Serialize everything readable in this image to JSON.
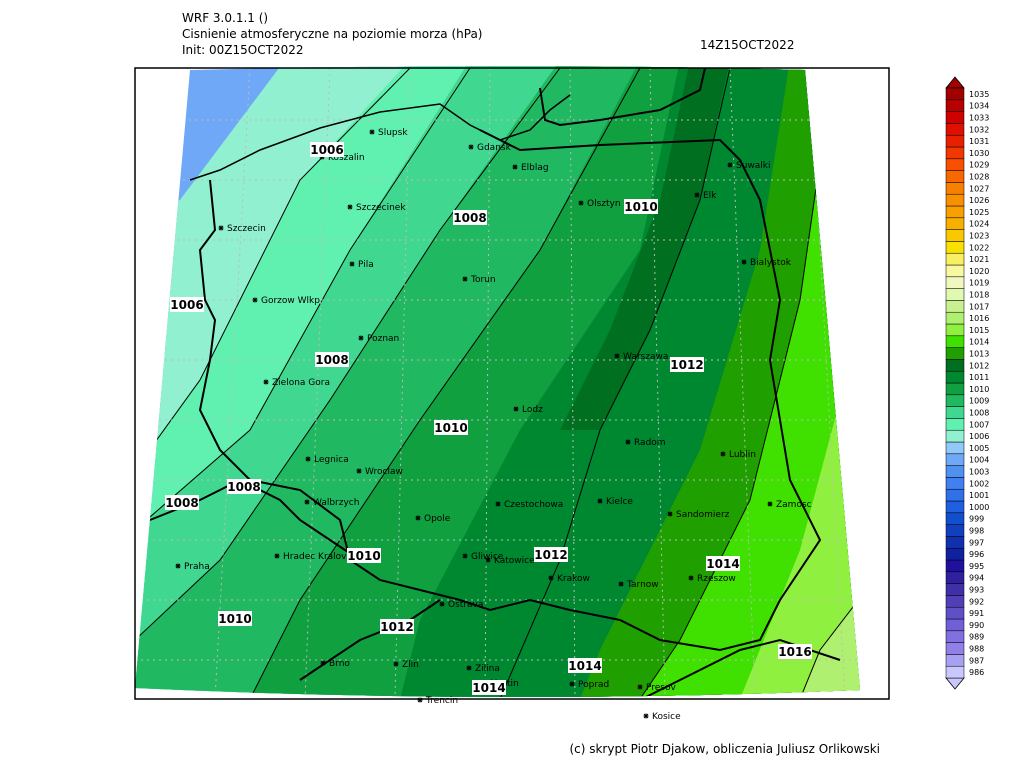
{
  "header": {
    "model": "WRF 3.0.1.1 ()",
    "title": "Cisnienie atmosferyczne na poziomie morza (hPa)",
    "init": "Init: 00Z15OCT2022",
    "valid": "14Z15OCT2022"
  },
  "footer": "(c) skrypt Piotr Djakow, obliczenia Juliusz Orlikowski",
  "cities": [
    "Slupsk",
    "Gdansk",
    "Koszalin",
    "Elblag",
    "Szczecinek",
    "Olsztyn",
    "Elk",
    "Suwalki",
    "Szczecin",
    "Pila",
    "Torun",
    "Bialystok",
    "Gorzow Wlkp",
    "Poznan",
    "Warszawa",
    "Zielona Gora",
    "Lodz",
    "Radom",
    "Lublin",
    "Legnica",
    "Wroclaw",
    "Kielce",
    "Walbrzych",
    "Czestochowa",
    "Zamosc",
    "Opole",
    "Sandomierz",
    "Praha",
    "Hradec Kralove",
    "Gliwice",
    "Katowice",
    "Krakow",
    "Tarnow",
    "Rzeszow",
    "Ostrava",
    "Brno",
    "Zlin",
    "Zilina",
    "Martin",
    "Poprad",
    "Presov",
    "Kosice",
    "Trencin"
  ],
  "isobar_labels": [
    1006,
    1010,
    1008,
    1006,
    1008,
    1012,
    1010,
    1008,
    1008,
    1010,
    1012,
    1014,
    1010,
    1012,
    1014,
    1016,
    1014
  ],
  "colorbar": {
    "levels": [
      986,
      987,
      988,
      989,
      990,
      991,
      992,
      993,
      994,
      995,
      996,
      997,
      998,
      999,
      1000,
      1001,
      1002,
      1003,
      1004,
      1005,
      1006,
      1007,
      1008,
      1009,
      1010,
      1011,
      1012,
      1013,
      1014,
      1015,
      1016,
      1017,
      1018,
      1019,
      1020,
      1021,
      1022,
      1023,
      1024,
      1025,
      1026,
      1027,
      1028,
      1029,
      1030,
      1031,
      1032,
      1033,
      1034,
      1035
    ],
    "colors": [
      "#c8c8ff",
      "#a8a0f0",
      "#9080e8",
      "#8070e0",
      "#7060d8",
      "#6050c8",
      "#5040b8",
      "#4030a8",
      "#3020a0",
      "#2010a0",
      "#1020a0",
      "#1030b0",
      "#1040c0",
      "#1050d0",
      "#2060e0",
      "#3070e8",
      "#4080f0",
      "#5090f0",
      "#70a8f8",
      "#90c8f8",
      "#90f0d0",
      "#60f0b0",
      "#40d890",
      "#20b860",
      "#10a040",
      "#008830",
      "#007020",
      "#20a000",
      "#40e000",
      "#90f040",
      "#b0f070",
      "#c8f090",
      "#e0f8b0",
      "#f0f8c0",
      "#f8f8a0",
      "#f8f060",
      "#f8e000",
      "#f8c800",
      "#f8b000",
      "#f8a000",
      "#f89000",
      "#f88000",
      "#f86800",
      "#f85000",
      "#f03800",
      "#e82000",
      "#e01000",
      "#d00000",
      "#b80000",
      "#a00000"
    ]
  }
}
